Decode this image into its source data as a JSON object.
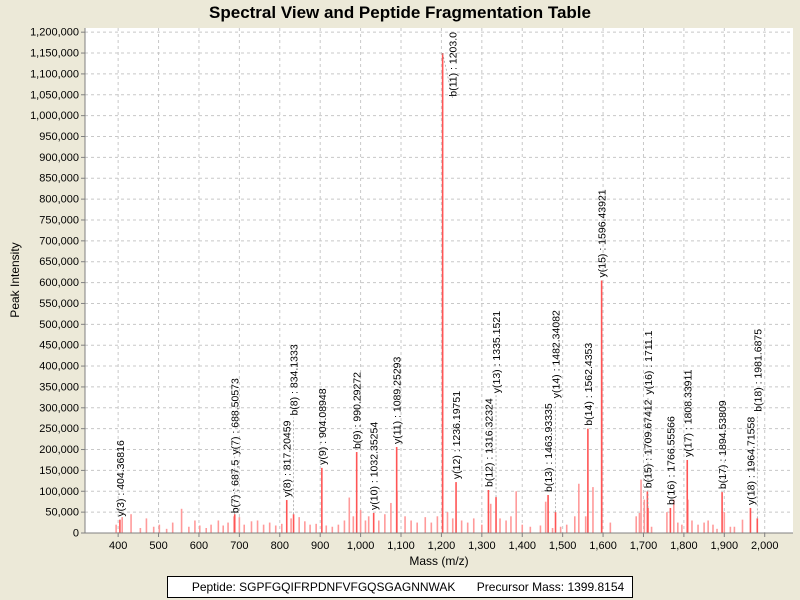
{
  "chart_data": {
    "type": "bar",
    "title": "Spectral View and Peptide Fragmentation Table",
    "xlabel": "Mass (m/z)",
    "ylabel": "Peak Intensity",
    "xlim": [
      318,
      2070
    ],
    "ylim": [
      0,
      1210000
    ],
    "xticks": [
      400,
      500,
      600,
      700,
      800,
      900,
      1000,
      1100,
      1200,
      1300,
      1400,
      1500,
      1600,
      1700,
      1800,
      1900,
      2000
    ],
    "yticks": [
      0,
      50000,
      100000,
      150000,
      200000,
      250000,
      300000,
      350000,
      400000,
      450000,
      500000,
      550000,
      600000,
      650000,
      700000,
      750000,
      800000,
      850000,
      900000,
      950000,
      1000000,
      1050000,
      1100000,
      1150000,
      1200000
    ],
    "grid": true,
    "peak_color": "#ff5555",
    "annotated_peaks": [
      {
        "mz": 404.36816,
        "intensity": 32000,
        "label": "y(3) : 404.36816"
      },
      {
        "mz": 687.5,
        "intensity": 40000,
        "label": "b(7) : 687.5"
      },
      {
        "mz": 688.5,
        "intensity": 45000,
        "label": "y(7) : 688.50573"
      },
      {
        "mz": 817.20459,
        "intensity": 79000,
        "label": "y(8) : 817.20459"
      },
      {
        "mz": 834.1333,
        "intensity": 45000,
        "label": "b(8) : 834.1333"
      },
      {
        "mz": 904.08948,
        "intensity": 156000,
        "label": "y(9) : 904.08948"
      },
      {
        "mz": 990.29272,
        "intensity": 194000,
        "label": "b(9) : 990.29272"
      },
      {
        "mz": 1032.35254,
        "intensity": 48000,
        "label": "y(10) : 1032.35254"
      },
      {
        "mz": 1089.25293,
        "intensity": 206000,
        "label": "y(11) : 1089.25293"
      },
      {
        "mz": 1203.0,
        "intensity": 1150000,
        "label": "b(11) : 1203.0"
      },
      {
        "mz": 1236.19751,
        "intensity": 122000,
        "label": "y(12) : 1236.19751"
      },
      {
        "mz": 1316.32324,
        "intensity": 103000,
        "label": "b(12) : 1316.32324"
      },
      {
        "mz": 1335.1521,
        "intensity": 86000,
        "label": "y(13) : 1335.1521"
      },
      {
        "mz": 1463.93335,
        "intensity": 91000,
        "label": "b(13) : 1463.93335"
      },
      {
        "mz": 1482.34082,
        "intensity": 50000,
        "label": "y(14) : 1482.34082"
      },
      {
        "mz": 1562.4353,
        "intensity": 250000,
        "label": "b(14) : 1562.4353"
      },
      {
        "mz": 1596.43921,
        "intensity": 605000,
        "label": "y(15) : 1596.43921"
      },
      {
        "mz": 1709.67412,
        "intensity": 100000,
        "label": "b(15) : 1709.67412"
      },
      {
        "mz": 1711.1,
        "intensity": 60000,
        "label": "y(16) : 1711.1"
      },
      {
        "mz": 1766.55566,
        "intensity": 60000,
        "label": "b(16) : 1766.55566"
      },
      {
        "mz": 1808.33911,
        "intensity": 175000,
        "label": "y(17) : 1808.33911"
      },
      {
        "mz": 1894.53809,
        "intensity": 98000,
        "label": "b(17) : 1894.53809"
      },
      {
        "mz": 1964.71558,
        "intensity": 60000,
        "label": "y(18) : 1964.71558"
      },
      {
        "mz": 1981.6875,
        "intensity": 35000,
        "label": "b(18) : 1981.6875"
      }
    ],
    "other_peaks": [
      [
        395,
        20000
      ],
      [
        410,
        38000
      ],
      [
        432,
        45000
      ],
      [
        455,
        12000
      ],
      [
        470,
        35000
      ],
      [
        488,
        15000
      ],
      [
        502,
        20000
      ],
      [
        520,
        10000
      ],
      [
        535,
        25000
      ],
      [
        557,
        58000
      ],
      [
        575,
        15000
      ],
      [
        590,
        30000
      ],
      [
        602,
        18000
      ],
      [
        618,
        12000
      ],
      [
        630,
        20000
      ],
      [
        648,
        30000
      ],
      [
        660,
        18000
      ],
      [
        672,
        25000
      ],
      [
        700,
        38000
      ],
      [
        712,
        20000
      ],
      [
        730,
        28000
      ],
      [
        745,
        30000
      ],
      [
        760,
        20000
      ],
      [
        775,
        25000
      ],
      [
        790,
        18000
      ],
      [
        805,
        22000
      ],
      [
        828,
        35000
      ],
      [
        848,
        38000
      ],
      [
        862,
        28000
      ],
      [
        875,
        20000
      ],
      [
        890,
        22000
      ],
      [
        915,
        18000
      ],
      [
        930,
        15000
      ],
      [
        945,
        20000
      ],
      [
        960,
        30000
      ],
      [
        972,
        85000
      ],
      [
        982,
        40000
      ],
      [
        1000,
        55000
      ],
      [
        1012,
        30000
      ],
      [
        1020,
        40000
      ],
      [
        1045,
        30000
      ],
      [
        1060,
        45000
      ],
      [
        1075,
        72000
      ],
      [
        1090,
        100000
      ],
      [
        1110,
        40000
      ],
      [
        1125,
        30000
      ],
      [
        1140,
        25000
      ],
      [
        1160,
        38000
      ],
      [
        1175,
        25000
      ],
      [
        1190,
        40000
      ],
      [
        1203,
        615000
      ],
      [
        1215,
        50000
      ],
      [
        1228,
        35000
      ],
      [
        1250,
        30000
      ],
      [
        1265,
        25000
      ],
      [
        1280,
        35000
      ],
      [
        1300,
        20000
      ],
      [
        1322,
        70000
      ],
      [
        1345,
        35000
      ],
      [
        1360,
        30000
      ],
      [
        1372,
        40000
      ],
      [
        1385,
        100000
      ],
      [
        1400,
        20000
      ],
      [
        1420,
        15000
      ],
      [
        1445,
        18000
      ],
      [
        1458,
        75000
      ],
      [
        1475,
        12000
      ],
      [
        1495,
        15000
      ],
      [
        1510,
        20000
      ],
      [
        1530,
        40000
      ],
      [
        1540,
        118000
      ],
      [
        1557,
        40000
      ],
      [
        1575,
        110000
      ],
      [
        1597,
        420000
      ],
      [
        1618,
        25000
      ],
      [
        1682,
        40000
      ],
      [
        1690,
        48000
      ],
      [
        1694,
        128000
      ],
      [
        1702,
        80000
      ],
      [
        1720,
        15000
      ],
      [
        1758,
        50000
      ],
      [
        1775,
        80000
      ],
      [
        1785,
        25000
      ],
      [
        1795,
        20000
      ],
      [
        1810,
        80000
      ],
      [
        1820,
        30000
      ],
      [
        1835,
        20000
      ],
      [
        1850,
        25000
      ],
      [
        1860,
        30000
      ],
      [
        1872,
        20000
      ],
      [
        1882,
        10000
      ],
      [
        1900,
        50000
      ],
      [
        1915,
        15000
      ],
      [
        1925,
        15000
      ],
      [
        1945,
        32000
      ]
    ]
  },
  "legend": {
    "peptide": "Peptide: SGPFGQIFRPDNFVFGQSGAGNNWAK",
    "precursor": "Precursor Mass: 1399.8154"
  }
}
